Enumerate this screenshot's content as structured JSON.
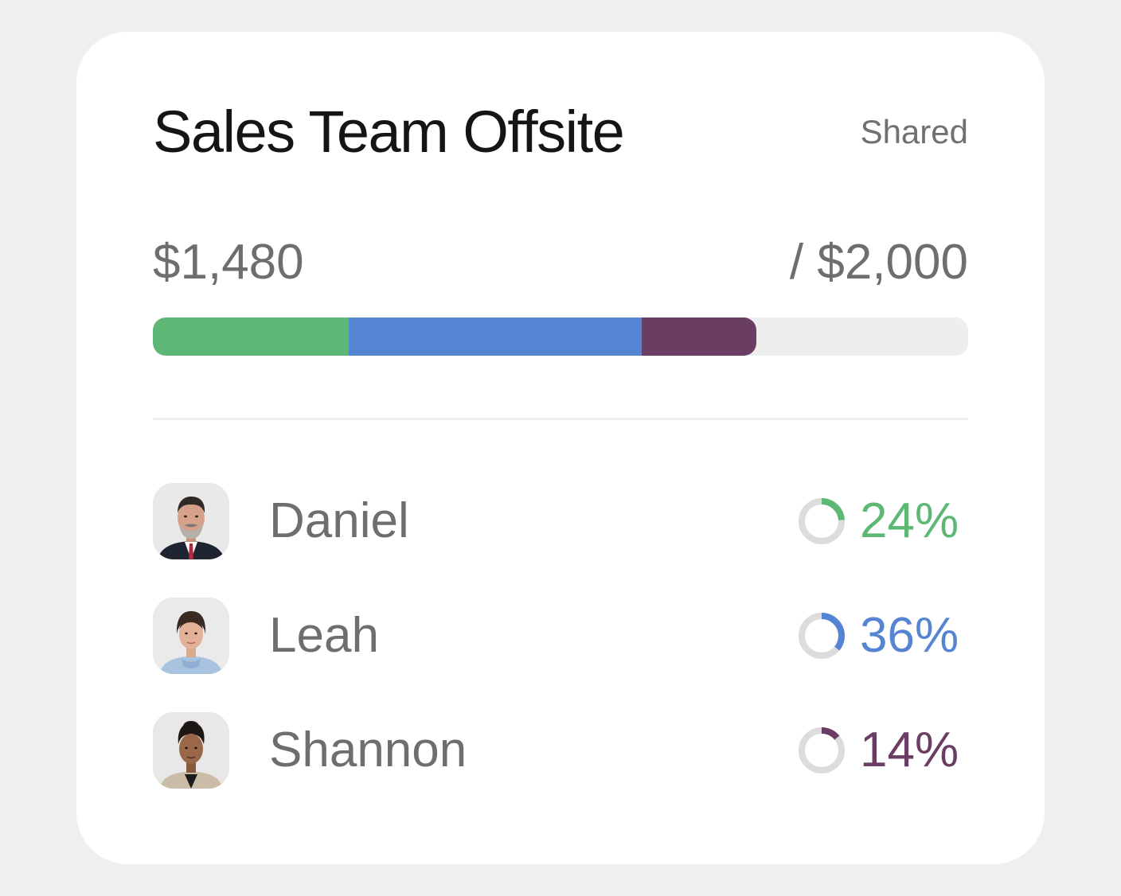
{
  "budget": {
    "title": "Sales Team Offsite",
    "visibility": "Shared",
    "spent_label": "$1,480",
    "total_label": "/ $2,000",
    "spent": 1480,
    "total": 2000,
    "track_color": "#eeeeee"
  },
  "members": [
    {
      "name": "Daniel",
      "percent": 24,
      "percent_label": "24%",
      "color": "#5cb874",
      "avatar": "avatar-photo-man-suit"
    },
    {
      "name": "Leah",
      "percent": 36,
      "percent_label": "36%",
      "color": "#5584d2",
      "avatar": "avatar-photo-woman-denim"
    },
    {
      "name": "Shannon",
      "percent": 14,
      "percent_label": "14%",
      "color": "#6a3d63",
      "avatar": "avatar-photo-woman-blazer"
    }
  ]
}
